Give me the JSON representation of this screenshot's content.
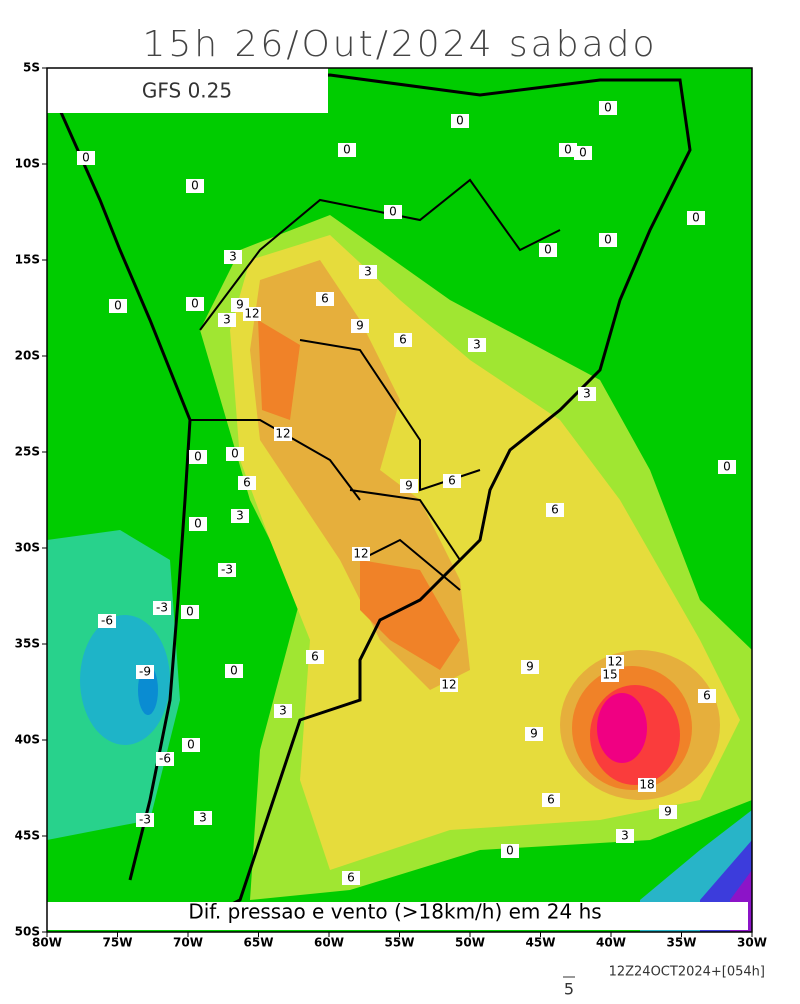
{
  "header": {
    "title": "15h 26/Out/2024 sabado",
    "model": "GFS 0.25"
  },
  "map": {
    "lat_labels": [
      "5S",
      "10S",
      "15S",
      "20S",
      "25S",
      "30S",
      "35S",
      "40S",
      "45S",
      "50S"
    ],
    "lon_labels": [
      "80W",
      "75W",
      "70W",
      "65W",
      "60W",
      "55W",
      "50W",
      "45W",
      "40W",
      "35W",
      "30W"
    ],
    "contour_labels": [
      "0",
      "0",
      "0",
      "0",
      "0",
      "0",
      "0",
      "0",
      "0",
      "0",
      "0",
      "3",
      "3",
      "0",
      "0",
      "6",
      "9",
      "12",
      "3",
      "9",
      "6",
      "3",
      "3",
      "12",
      "0",
      "0",
      "0",
      "6",
      "9",
      "6",
      "3",
      "6",
      "0",
      "12",
      "-3",
      "-3",
      "0",
      "-6",
      "6",
      "12",
      "9",
      "15",
      "-9",
      "0",
      "12",
      "6",
      "3",
      "9",
      "0",
      "-6",
      "18",
      "6",
      "9",
      "-3",
      "3",
      "3",
      "0",
      "6"
    ],
    "caption": "Dif. pressao e vento (>18km/h) em 24 hs"
  },
  "footer": {
    "vector_scale": "5",
    "run": "12Z24OCT2024+[054h]"
  }
}
